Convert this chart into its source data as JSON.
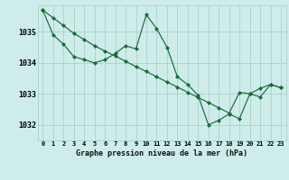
{
  "title": "Graphe pression niveau de la mer (hPa)",
  "background_color": "#ceecea",
  "grid_color": "#a8d4cc",
  "line_color": "#1a6b3a",
  "x_labels": [
    "0",
    "1",
    "2",
    "3",
    "4",
    "5",
    "6",
    "7",
    "8",
    "9",
    "10",
    "11",
    "12",
    "13",
    "14",
    "15",
    "16",
    "17",
    "18",
    "19",
    "20",
    "21",
    "22",
    "23"
  ],
  "ylim": [
    1031.5,
    1035.85
  ],
  "yticks": [
    1032,
    1033,
    1034,
    1035
  ],
  "series1_y": [
    1035.7,
    1034.9,
    1034.6,
    1034.2,
    1034.1,
    1034.0,
    1034.1,
    1034.3,
    1034.55,
    1034.45,
    1035.55,
    1035.1,
    1034.5,
    1033.55,
    1033.3,
    1032.95,
    1032.0,
    1032.15,
    1032.35,
    1032.2,
    1033.0,
    1032.9,
    1033.3,
    1033.2
  ],
  "series2_y": [
    1035.7,
    1035.45,
    1035.2,
    1034.95,
    1034.75,
    1034.55,
    1034.38,
    1034.22,
    1034.05,
    1033.88,
    1033.72,
    1033.55,
    1033.38,
    1033.22,
    1033.05,
    1032.88,
    1032.72,
    1032.55,
    1032.38,
    1033.05,
    1033.0,
    1033.18,
    1033.3,
    1033.2
  ]
}
